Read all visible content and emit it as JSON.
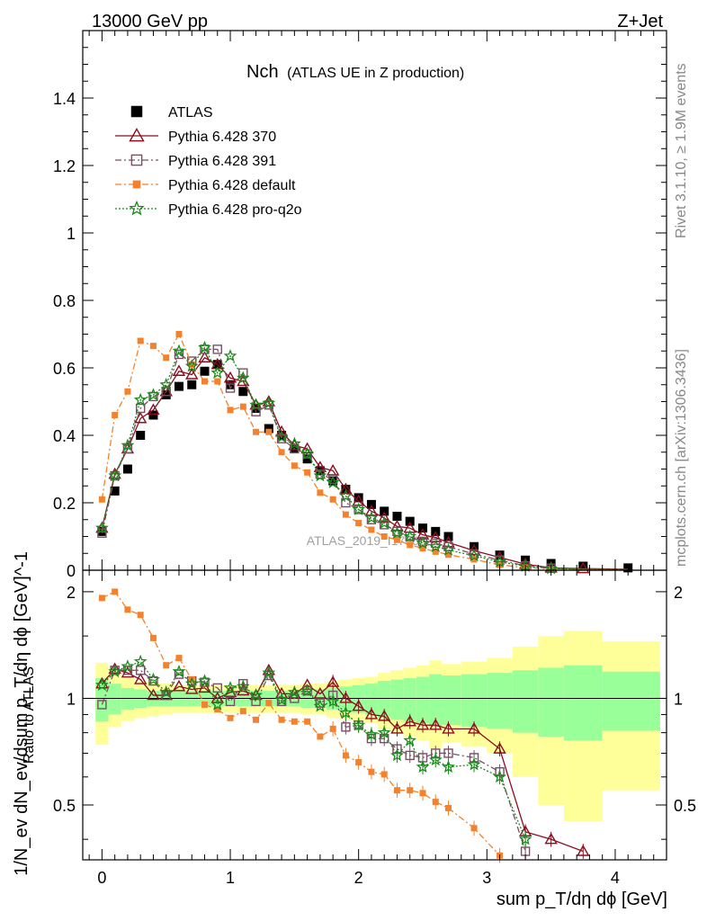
{
  "header": {
    "energy_label": "13000 GeV pp",
    "process_label": "Z+Jet"
  },
  "side_labels": {
    "rivet": "Rivet 3.1.10, ≥ 1.9M events",
    "mcplots": "mcplots.cern.ch [arXiv:1306.3436]"
  },
  "plot_title": {
    "main": "Nch",
    "sub": "(ATLAS UE in Z production)"
  },
  "watermark": "ATLAS_2019_I1736531",
  "legend": [
    {
      "label": "ATLAS",
      "color": "#000000",
      "marker": "square-filled",
      "line": "none"
    },
    {
      "label": "Pythia 6.428 370",
      "color": "#8b0f1f",
      "marker": "triangle-open",
      "line": "solid"
    },
    {
      "label": "Pythia 6.428 391",
      "color": "#7a4f64",
      "marker": "square-open",
      "line": "dashdot"
    },
    {
      "label": "Pythia 6.428 default",
      "color": "#f4822c",
      "marker": "square-filled-small",
      "line": "dashdot"
    },
    {
      "label": "Pythia 6.428 pro-q2o",
      "color": "#1a8a1a",
      "marker": "star",
      "line": "dotted"
    }
  ],
  "chart_data": {
    "type": "line",
    "x_label": "sum p_T/dη dϕ [GeV]",
    "main_panel": {
      "y_label": "1/N_ev dN_ev/dsum p_T/dη dϕ [GeV]^-1",
      "ylim": [
        0,
        1.6
      ],
      "yticks": [
        "0",
        "0.2",
        "0.4",
        "0.6",
        "0.8",
        "1",
        "1.2",
        "1.4"
      ]
    },
    "ratio_panel": {
      "y_label": "Ratio to ATLAS",
      "ylim": [
        0.35,
        2.3
      ],
      "yticks": [
        "0.5",
        "1",
        "2"
      ]
    },
    "xlim": [
      -0.15,
      4.4
    ],
    "xticks": [
      "0",
      "1",
      "2",
      "3",
      "4"
    ],
    "x": [
      0.0,
      0.1,
      0.2,
      0.3,
      0.4,
      0.5,
      0.6,
      0.7,
      0.8,
      0.9,
      1.0,
      1.1,
      1.2,
      1.3,
      1.4,
      1.5,
      1.6,
      1.7,
      1.8,
      1.9,
      2.0,
      2.1,
      2.2,
      2.3,
      2.4,
      2.5,
      2.6,
      2.7,
      2.9,
      3.1,
      3.3,
      3.5,
      3.75,
      4.1
    ],
    "series": [
      {
        "name": "ATLAS",
        "values": [
          0.115,
          0.235,
          0.3,
          0.4,
          0.46,
          0.52,
          0.545,
          0.55,
          0.59,
          0.61,
          0.55,
          0.53,
          0.48,
          0.42,
          0.4,
          0.36,
          0.33,
          0.295,
          0.265,
          0.24,
          0.215,
          0.195,
          0.175,
          0.16,
          0.145,
          0.125,
          0.115,
          0.1,
          0.07,
          0.045,
          0.03,
          0.02,
          0.012,
          0.007
        ],
        "ratio": [
          1.0,
          1.0,
          1.0,
          1.0,
          1.0,
          1.0,
          1.0,
          1.0,
          1.0,
          1.0,
          1.0,
          1.0,
          1.0,
          1.0,
          1.0,
          1.0,
          1.0,
          1.0,
          1.0,
          1.0,
          1.0,
          1.0,
          1.0,
          1.0,
          1.0,
          1.0,
          1.0,
          1.0,
          1.0,
          1.0,
          1.0,
          1.0,
          1.0,
          1.0
        ]
      },
      {
        "name": "Pythia 6.428 370",
        "values": [
          0.125,
          0.285,
          0.36,
          0.45,
          0.475,
          0.53,
          0.59,
          0.58,
          0.63,
          0.61,
          0.57,
          0.56,
          0.49,
          0.5,
          0.41,
          0.37,
          0.36,
          0.305,
          0.295,
          0.24,
          0.205,
          0.175,
          0.155,
          0.13,
          0.125,
          0.105,
          0.097,
          0.082,
          0.058,
          0.038,
          0.018,
          0.007,
          0.005,
          0.003
        ],
        "ratio": [
          1.1,
          1.21,
          1.18,
          1.13,
          1.02,
          1.02,
          1.08,
          1.06,
          1.07,
          1.0,
          1.04,
          1.05,
          1.02,
          1.2,
          1.03,
          1.03,
          1.09,
          1.03,
          1.11,
          1.0,
          0.95,
          0.9,
          0.89,
          0.82,
          0.86,
          0.84,
          0.84,
          0.82,
          0.82,
          0.72,
          0.42,
          0.4,
          0.37,
          null
        ]
      },
      {
        "name": "Pythia 6.428 391",
        "values": [
          0.11,
          0.28,
          0.36,
          0.48,
          0.515,
          0.53,
          0.64,
          0.62,
          0.655,
          0.655,
          0.54,
          0.585,
          0.47,
          0.49,
          0.39,
          0.36,
          0.345,
          0.285,
          0.27,
          0.2,
          0.18,
          0.15,
          0.135,
          0.115,
          0.1,
          0.085,
          0.08,
          0.07,
          0.048,
          0.03,
          0.013,
          0.006,
          0.003,
          0.002
        ],
        "ratio": [
          0.96,
          1.2,
          1.2,
          1.2,
          1.12,
          1.02,
          1.17,
          1.12,
          1.11,
          1.07,
          0.98,
          1.1,
          0.98,
          1.16,
          0.98,
          1.0,
          1.05,
          0.97,
          1.02,
          0.83,
          0.84,
          0.77,
          0.77,
          0.72,
          0.69,
          0.68,
          0.7,
          0.7,
          0.68,
          0.62,
          0.37,
          null,
          null,
          null
        ]
      },
      {
        "name": "Pythia 6.428 default",
        "values": [
          0.21,
          0.46,
          0.53,
          0.68,
          0.665,
          0.63,
          0.7,
          0.61,
          0.56,
          0.56,
          0.475,
          0.485,
          0.41,
          0.41,
          0.35,
          0.31,
          0.29,
          0.23,
          0.21,
          0.165,
          0.14,
          0.12,
          0.1,
          0.09,
          0.075,
          0.065,
          0.055,
          0.046,
          0.032,
          0.016,
          0.008,
          0.004,
          0.002,
          0.001
        ],
        "ratio": [
          1.92,
          2.0,
          1.78,
          1.72,
          1.48,
          1.24,
          1.3,
          1.13,
          0.96,
          0.93,
          0.88,
          0.92,
          0.87,
          0.97,
          0.87,
          0.86,
          0.86,
          0.78,
          0.82,
          0.69,
          0.66,
          0.62,
          0.61,
          0.55,
          0.55,
          0.54,
          0.51,
          0.49,
          0.43,
          0.36,
          null,
          null,
          null,
          null
        ]
      },
      {
        "name": "Pythia 6.428 pro-q2o",
        "values": [
          0.125,
          0.28,
          0.37,
          0.505,
          0.52,
          0.55,
          0.65,
          0.605,
          0.66,
          0.585,
          0.635,
          0.57,
          0.49,
          0.495,
          0.395,
          0.375,
          0.345,
          0.28,
          0.26,
          0.22,
          0.18,
          0.155,
          0.14,
          0.11,
          0.1,
          0.08,
          0.07,
          0.06,
          0.043,
          0.025,
          0.012,
          0.005,
          0.003,
          0.002
        ],
        "ratio": [
          1.09,
          1.19,
          1.23,
          1.27,
          1.13,
          1.04,
          1.19,
          1.1,
          1.12,
          0.96,
          1.07,
          1.08,
          1.02,
          1.18,
          0.99,
          1.04,
          1.05,
          0.95,
          0.98,
          0.91,
          0.84,
          0.79,
          0.8,
          0.69,
          0.76,
          0.64,
          0.67,
          0.64,
          0.65,
          0.6,
          0.4,
          null,
          null,
          null
        ]
      }
    ],
    "uncertainty_bands": {
      "edges": [
        -0.05,
        0.05,
        0.15,
        0.25,
        0.35,
        0.45,
        0.55,
        0.65,
        0.75,
        0.85,
        0.95,
        1.05,
        1.15,
        1.25,
        1.35,
        1.45,
        1.55,
        1.65,
        1.75,
        1.85,
        1.95,
        2.05,
        2.15,
        2.25,
        2.35,
        2.45,
        2.55,
        2.65,
        2.8,
        3.0,
        3.2,
        3.4,
        3.6,
        3.9,
        4.35
      ],
      "stat": [
        0.14,
        0.1,
        0.07,
        0.06,
        0.05,
        0.05,
        0.05,
        0.05,
        0.05,
        0.05,
        0.05,
        0.05,
        0.05,
        0.05,
        0.05,
        0.05,
        0.06,
        0.06,
        0.07,
        0.08,
        0.09,
        0.1,
        0.12,
        0.13,
        0.14,
        0.15,
        0.17,
        0.16,
        0.17,
        0.18,
        0.2,
        0.22,
        0.24,
        0.19
      ],
      "total": [
        0.26,
        0.17,
        0.14,
        0.12,
        0.11,
        0.1,
        0.09,
        0.09,
        0.09,
        0.09,
        0.09,
        0.09,
        0.09,
        0.09,
        0.09,
        0.09,
        0.1,
        0.1,
        0.12,
        0.13,
        0.14,
        0.15,
        0.18,
        0.2,
        0.22,
        0.24,
        0.28,
        0.25,
        0.27,
        0.3,
        0.4,
        0.5,
        0.55,
        0.45
      ]
    }
  }
}
